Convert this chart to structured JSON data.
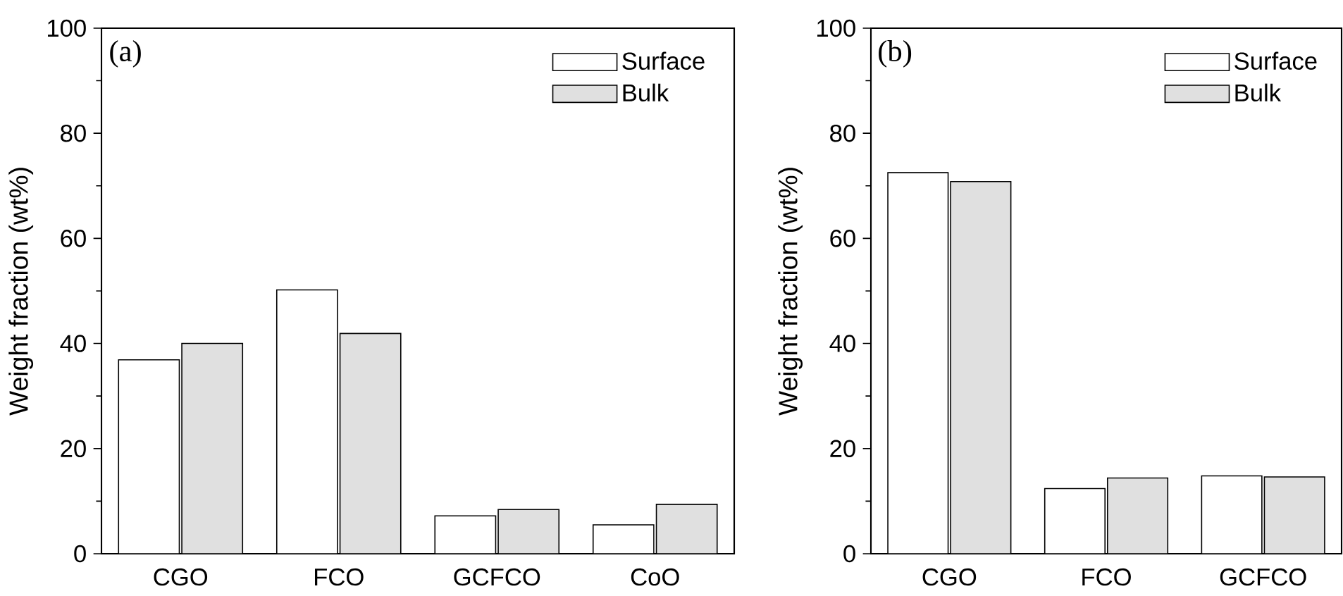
{
  "chart_data": [
    {
      "type": "bar",
      "ylabel": "Weight fraction (wt%)",
      "categories": [
        "CGO",
        "FCO",
        "GCFCO",
        "CoO"
      ],
      "series": [
        {
          "name": "Surface",
          "color": "#ffffff",
          "values": [
            36.9,
            50.2,
            7.2,
            5.5
          ]
        },
        {
          "name": "Bulk",
          "color": "#e0e0e0",
          "values": [
            40.0,
            41.9,
            8.4,
            9.4
          ]
        }
      ],
      "ylim": [
        0,
        100
      ],
      "yticks": [
        0,
        20,
        40,
        60,
        80,
        100
      ],
      "legend": "top right",
      "annotations": [
        "(a)"
      ]
    },
    {
      "type": "bar",
      "ylabel": "Weight fraction (wt%)",
      "categories": [
        "CGO",
        "FCO",
        "GCFCO"
      ],
      "series": [
        {
          "name": "Surface",
          "color": "#ffffff",
          "values": [
            72.5,
            12.4,
            14.8
          ]
        },
        {
          "name": "Bulk",
          "color": "#e0e0e0",
          "values": [
            70.8,
            14.4,
            14.6
          ]
        }
      ],
      "ylim": [
        0,
        100
      ],
      "yticks": [
        0,
        20,
        40,
        60,
        80,
        100
      ],
      "legend": "top right",
      "annotations": [
        "(b)"
      ]
    }
  ]
}
